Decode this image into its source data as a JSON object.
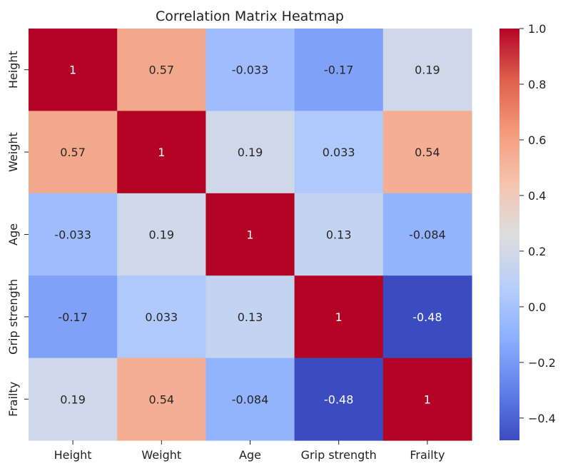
{
  "chart_data": {
    "type": "heatmap",
    "title": "Correlation Matrix Heatmap",
    "rows": [
      "Height",
      "Weight",
      "Age",
      "Grip strength",
      "Frailty"
    ],
    "columns": [
      "Height",
      "Weight",
      "Age",
      "Grip strength",
      "Frailty"
    ],
    "values": [
      [
        1,
        0.57,
        -0.033,
        -0.17,
        0.19
      ],
      [
        0.57,
        1,
        0.19,
        0.033,
        0.54
      ],
      [
        -0.033,
        0.19,
        1,
        0.13,
        -0.084
      ],
      [
        -0.17,
        0.033,
        0.13,
        1,
        -0.48
      ],
      [
        0.19,
        0.54,
        -0.084,
        -0.48,
        1
      ]
    ],
    "annotations": [
      [
        "1",
        "0.57",
        "-0.033",
        "-0.17",
        "0.19"
      ],
      [
        "0.57",
        "1",
        "0.19",
        "0.033",
        "0.54"
      ],
      [
        "-0.033",
        "0.19",
        "1",
        "0.13",
        "-0.084"
      ],
      [
        "-0.17",
        "0.033",
        "0.13",
        "1",
        "-0.48"
      ],
      [
        "0.19",
        "0.54",
        "-0.084",
        "-0.48",
        "1"
      ]
    ],
    "colormap": "coolwarm",
    "colorbar": {
      "range": [
        -0.48,
        1.0
      ],
      "ticks": [
        1.0,
        0.8,
        0.6,
        0.4,
        0.2,
        0.0,
        -0.2,
        -0.4
      ],
      "tick_labels": [
        "1.0",
        "0.8",
        "0.6",
        "0.4",
        "0.2",
        "0.0",
        "−0.2",
        "−0.4"
      ]
    },
    "colors": {
      "low": "#3b4cc0",
      "mid": "#dddddd",
      "high": "#b40426"
    }
  }
}
